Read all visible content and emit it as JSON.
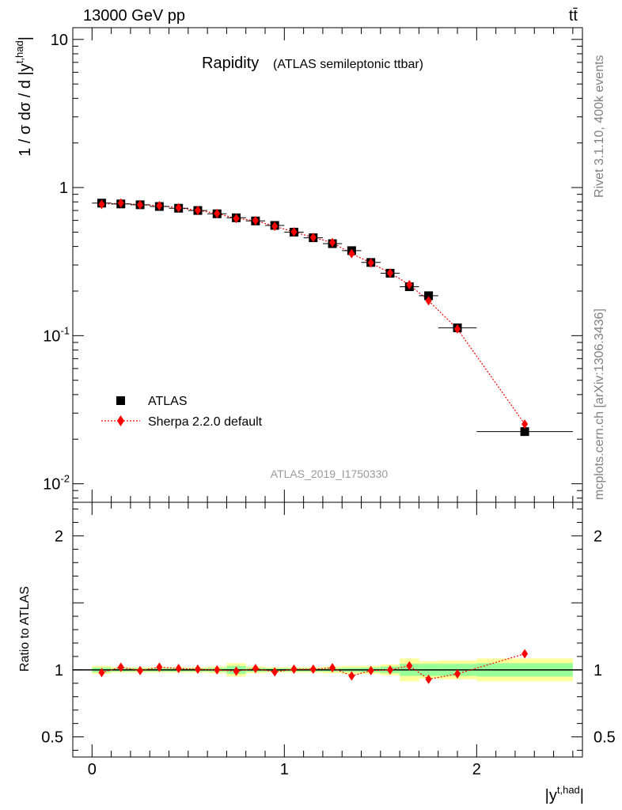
{
  "header": {
    "energy_label": "13000 GeV pp",
    "process_label": "tt̄"
  },
  "side_labels": {
    "generator": "Rivet 3.1.10,  400k events",
    "source": "mcplots.cern.ch [arXiv:1306.3436]"
  },
  "chart_data": [
    {
      "type": "scatter",
      "panel": "main",
      "title": "Rapidity",
      "subtitle": "(ATLAS semileptonic ttbar)",
      "watermark": "ATLAS_2019_I1750330",
      "ylabel": "1 / σ dσ / d |y^{t,had}|",
      "yscale": "log",
      "ylim": [
        0.0075,
        12
      ],
      "xlim": [
        -0.1,
        2.55
      ],
      "y_ticks": [
        {
          "value": 10,
          "label": "10"
        },
        {
          "value": 1,
          "label": "1"
        },
        {
          "value": 0.1,
          "label": "10^-1"
        },
        {
          "value": 0.01,
          "label": "10^-2"
        }
      ],
      "legend_position": "lower-left",
      "series": [
        {
          "name": "ATLAS",
          "marker": "square",
          "color": "#000000",
          "x": [
            0.05,
            0.15,
            0.25,
            0.35,
            0.45,
            0.55,
            0.65,
            0.75,
            0.85,
            0.95,
            1.05,
            1.15,
            1.25,
            1.35,
            1.45,
            1.55,
            1.65,
            1.75,
            1.9,
            2.25
          ],
          "x_halfwidth": [
            0.05,
            0.05,
            0.05,
            0.05,
            0.05,
            0.05,
            0.05,
            0.05,
            0.05,
            0.05,
            0.05,
            0.05,
            0.05,
            0.05,
            0.05,
            0.05,
            0.05,
            0.05,
            0.1,
            0.25
          ],
          "y": [
            0.785,
            0.775,
            0.765,
            0.745,
            0.725,
            0.7,
            0.665,
            0.625,
            0.595,
            0.555,
            0.5,
            0.458,
            0.418,
            0.375,
            0.312,
            0.264,
            0.214,
            0.186,
            0.113,
            0.0225
          ]
        },
        {
          "name": "Sherpa 2.2.0 default",
          "marker": "diamond",
          "line": "dotted",
          "color": "#ff0000",
          "x": [
            0.05,
            0.15,
            0.25,
            0.35,
            0.45,
            0.55,
            0.65,
            0.75,
            0.85,
            0.95,
            1.05,
            1.15,
            1.25,
            1.35,
            1.45,
            1.55,
            1.65,
            1.75,
            1.9,
            2.25
          ],
          "y": [
            0.77,
            0.785,
            0.765,
            0.755,
            0.73,
            0.702,
            0.668,
            0.618,
            0.598,
            0.547,
            0.502,
            0.46,
            0.425,
            0.358,
            0.31,
            0.265,
            0.221,
            0.172,
            0.111,
            0.0253
          ]
        }
      ]
    },
    {
      "type": "scatter",
      "panel": "ratio",
      "ylabel": "Ratio to ATLAS",
      "xlabel": "|y^{t,had}|",
      "ylim": [
        0.35,
        2.25
      ],
      "xlim": [
        -0.1,
        2.55
      ],
      "y_ticks": [
        {
          "value": 2,
          "label": "2"
        },
        {
          "value": 1,
          "label": "1"
        },
        {
          "value": 0.5,
          "label": "0.5"
        }
      ],
      "x_ticks": [
        {
          "value": 0,
          "label": "0"
        },
        {
          "value": 1,
          "label": "1"
        },
        {
          "value": 2,
          "label": "2"
        }
      ],
      "bins": [
        {
          "lo": 0.0,
          "hi": 0.1,
          "stat": 0.018,
          "total": 0.03
        },
        {
          "lo": 0.1,
          "hi": 0.2,
          "stat": 0.012,
          "total": 0.02
        },
        {
          "lo": 0.2,
          "hi": 0.3,
          "stat": 0.012,
          "total": 0.02
        },
        {
          "lo": 0.3,
          "hi": 0.4,
          "stat": 0.012,
          "total": 0.02
        },
        {
          "lo": 0.4,
          "hi": 0.5,
          "stat": 0.012,
          "total": 0.02
        },
        {
          "lo": 0.5,
          "hi": 0.6,
          "stat": 0.012,
          "total": 0.02
        },
        {
          "lo": 0.6,
          "hi": 0.7,
          "stat": 0.014,
          "total": 0.025
        },
        {
          "lo": 0.7,
          "hi": 0.8,
          "stat": 0.03,
          "total": 0.05
        },
        {
          "lo": 0.8,
          "hi": 0.9,
          "stat": 0.014,
          "total": 0.025
        },
        {
          "lo": 0.9,
          "hi": 1.0,
          "stat": 0.012,
          "total": 0.02
        },
        {
          "lo": 1.0,
          "hi": 1.1,
          "stat": 0.012,
          "total": 0.02
        },
        {
          "lo": 1.1,
          "hi": 1.2,
          "stat": 0.012,
          "total": 0.02
        },
        {
          "lo": 1.2,
          "hi": 1.3,
          "stat": 0.012,
          "total": 0.025
        },
        {
          "lo": 1.3,
          "hi": 1.4,
          "stat": 0.015,
          "total": 0.03
        },
        {
          "lo": 1.4,
          "hi": 1.5,
          "stat": 0.018,
          "total": 0.03
        },
        {
          "lo": 1.5,
          "hi": 1.6,
          "stat": 0.025,
          "total": 0.04
        },
        {
          "lo": 1.6,
          "hi": 1.7,
          "stat": 0.045,
          "total": 0.085
        },
        {
          "lo": 1.7,
          "hi": 1.8,
          "stat": 0.045,
          "total": 0.065
        },
        {
          "lo": 1.8,
          "hi": 2.0,
          "stat": 0.045,
          "total": 0.07
        },
        {
          "lo": 2.0,
          "hi": 2.5,
          "stat": 0.05,
          "total": 0.085
        }
      ],
      "series": [
        {
          "name": "Sherpa 2.2.0 default",
          "x": [
            0.05,
            0.15,
            0.25,
            0.35,
            0.45,
            0.55,
            0.65,
            0.75,
            0.85,
            0.95,
            1.05,
            1.15,
            1.25,
            1.35,
            1.45,
            1.55,
            1.65,
            1.75,
            1.9,
            2.25
          ],
          "y": [
            0.98,
            1.02,
            0.995,
            1.02,
            1.01,
            1.005,
            1.0,
            0.99,
            1.01,
            0.985,
            1.005,
            1.005,
            1.015,
            0.955,
            0.995,
            1.0,
            1.03,
            0.93,
            0.97,
            1.12
          ]
        }
      ]
    }
  ],
  "colors": {
    "data": "#000000",
    "mc": "#ff0000",
    "band_total": "#ffff99",
    "band_stat": "#99ff99",
    "watermark": "#999999",
    "side_text": "#808080"
  }
}
